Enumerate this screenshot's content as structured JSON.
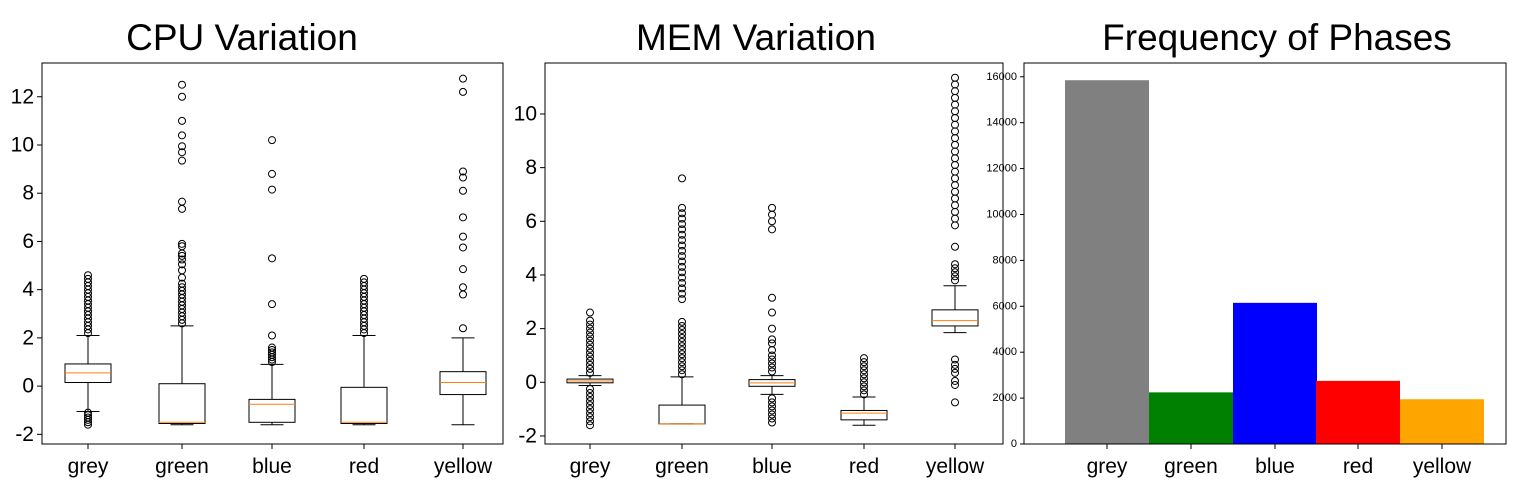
{
  "chart_data": [
    {
      "type": "box",
      "title": "CPU Variation",
      "categories": [
        "grey",
        "green",
        "blue",
        "red",
        "yellow"
      ],
      "ylim": [
        -2.4,
        13.4
      ],
      "yticks": [
        -2,
        0,
        2,
        4,
        6,
        8,
        10,
        12
      ],
      "ytick_labels": [
        "-2",
        "0",
        "2",
        "4",
        "6",
        "8",
        "10",
        "12"
      ],
      "grid": false,
      "boxes": [
        {
          "name": "grey",
          "whisker_low": -1.05,
          "q1": 0.15,
          "median": 0.55,
          "q3": 0.92,
          "whisker_high": 2.1,
          "outliers": [
            -1.1,
            -1.2,
            -1.3,
            -1.4,
            -1.5,
            -1.6,
            2.2,
            2.35,
            2.5,
            2.65,
            2.8,
            2.95,
            3.1,
            3.25,
            3.4,
            3.55,
            3.7,
            3.85,
            4.0,
            4.15,
            4.3,
            4.45,
            4.6
          ]
        },
        {
          "name": "green",
          "whisker_low": -1.6,
          "q1": -1.55,
          "median": -1.5,
          "q3": 0.1,
          "whisker_high": 2.5,
          "outliers": [
            2.6,
            2.75,
            2.9,
            3.05,
            3.2,
            3.35,
            3.5,
            3.65,
            3.8,
            3.95,
            4.1,
            4.25,
            4.5,
            4.8,
            5.05,
            5.25,
            5.4,
            5.5,
            5.8,
            5.9,
            7.35,
            7.65,
            9.35,
            9.7,
            9.95,
            10.4,
            11.0,
            12.0,
            12.5
          ]
        },
        {
          "name": "blue",
          "whisker_low": -1.6,
          "q1": -1.5,
          "median": -0.75,
          "q3": -0.55,
          "whisker_high": 0.9,
          "outliers": [
            1.0,
            1.1,
            1.2,
            1.3,
            1.4,
            1.5,
            1.6,
            2.1,
            3.4,
            5.3,
            8.15,
            8.8,
            10.2
          ]
        },
        {
          "name": "red",
          "whisker_low": -1.6,
          "q1": -1.55,
          "median": -1.5,
          "q3": -0.05,
          "whisker_high": 2.1,
          "outliers": [
            2.2,
            2.35,
            2.5,
            2.65,
            2.8,
            2.95,
            3.1,
            3.25,
            3.4,
            3.55,
            3.7,
            3.85,
            4.0,
            4.15,
            4.3,
            4.45
          ]
        },
        {
          "name": "yellow",
          "whisker_low": -1.6,
          "q1": -0.35,
          "median": 0.15,
          "q3": 0.6,
          "whisker_high": 2.0,
          "outliers": [
            2.4,
            3.8,
            4.1,
            4.85,
            5.75,
            6.2,
            7.0,
            8.1,
            8.65,
            8.9,
            12.2,
            12.75
          ]
        }
      ]
    },
    {
      "type": "box",
      "title": "MEM Variation",
      "categories": [
        "grey",
        "green",
        "blue",
        "red",
        "yellow"
      ],
      "ylim": [
        -2.3,
        11.9
      ],
      "yticks": [
        -2,
        0,
        2,
        4,
        6,
        8,
        10
      ],
      "ytick_labels": [
        "-2",
        "0",
        "2",
        "4",
        "6",
        "8",
        "10"
      ],
      "grid": false,
      "boxes": [
        {
          "name": "grey",
          "whisker_low": -0.12,
          "q1": -0.02,
          "median": 0.05,
          "q3": 0.12,
          "whisker_high": 0.25,
          "outliers": [
            -0.25,
            -0.4,
            -0.55,
            -0.7,
            -0.85,
            -1.0,
            -1.15,
            -1.3,
            -1.45,
            -1.6,
            0.35,
            0.5,
            0.65,
            0.8,
            0.95,
            1.1,
            1.25,
            1.4,
            1.55,
            1.7,
            1.85,
            2.0,
            2.15,
            2.3,
            2.6
          ]
        },
        {
          "name": "green",
          "whisker_low": -1.55,
          "q1": -1.55,
          "median": -1.55,
          "q3": -0.85,
          "whisker_high": 0.2,
          "outliers": [
            0.3,
            0.45,
            0.6,
            0.75,
            0.9,
            1.05,
            1.2,
            1.35,
            1.5,
            1.65,
            1.8,
            1.95,
            2.1,
            2.25,
            3.1,
            3.3,
            3.5,
            3.7,
            3.9,
            4.1,
            4.3,
            4.5,
            4.7,
            4.9,
            5.1,
            5.3,
            5.5,
            5.7,
            5.9,
            6.1,
            6.3,
            6.5,
            7.6
          ]
        },
        {
          "name": "blue",
          "whisker_low": -0.45,
          "q1": -0.15,
          "median": -0.02,
          "q3": 0.1,
          "whisker_high": 0.25,
          "outliers": [
            -0.6,
            -0.75,
            -0.9,
            -1.05,
            -1.2,
            -1.35,
            -1.5,
            0.4,
            0.55,
            0.7,
            0.85,
            1.0,
            1.2,
            1.45,
            1.6,
            2.0,
            2.6,
            3.15,
            5.7,
            6.0,
            6.25,
            6.5
          ]
        },
        {
          "name": "red",
          "whisker_low": -1.6,
          "q1": -1.4,
          "median": -1.15,
          "q3": -1.05,
          "whisker_high": -0.55,
          "outliers": [
            -0.45,
            -0.3,
            -0.15,
            0.0,
            0.15,
            0.3,
            0.45,
            0.6,
            0.75,
            0.9
          ]
        },
        {
          "name": "yellow",
          "whisker_low": 1.85,
          "q1": 2.1,
          "median": 2.3,
          "q3": 2.7,
          "whisker_high": 3.6,
          "outliers": [
            -0.75,
            -0.1,
            0.05,
            0.35,
            0.5,
            0.65,
            0.85,
            3.8,
            3.95,
            4.1,
            4.25,
            4.4,
            5.05,
            5.85,
            6.1,
            6.35,
            6.6,
            6.85,
            7.1,
            7.35,
            7.6,
            7.85,
            8.1,
            8.35,
            8.6,
            8.85,
            9.1,
            9.35,
            9.6,
            9.85,
            10.1,
            10.35,
            10.6,
            10.85,
            11.1,
            11.35
          ]
        }
      ]
    },
    {
      "type": "bar",
      "title": "Frequency of Phases",
      "categories": [
        "grey",
        "green",
        "blue",
        "red",
        "yellow"
      ],
      "values": [
        15850,
        2250,
        6150,
        2750,
        1950
      ],
      "colors": [
        "#808080",
        "#008000",
        "#0000ff",
        "#ff0000",
        "#ffa500"
      ],
      "ylim": [
        0,
        16600
      ],
      "yticks": [
        0,
        2000,
        4000,
        6000,
        8000,
        10000,
        12000,
        14000,
        16000
      ],
      "ytick_labels": [
        "0",
        "2000",
        "4000",
        "6000",
        "8000",
        "10000",
        "12000",
        "14000",
        "16000"
      ],
      "grid": false
    }
  ]
}
